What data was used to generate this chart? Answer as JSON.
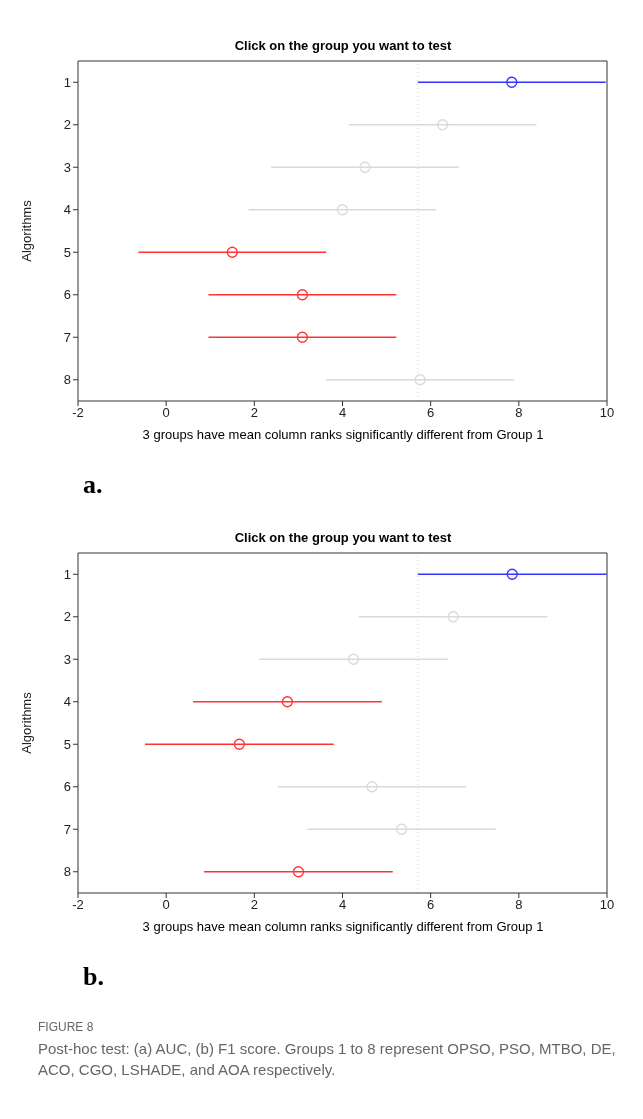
{
  "chart_data": [
    {
      "type": "scatter",
      "orientation": "horizontal",
      "title": "Click on the group you want to test",
      "xlabel": "3 groups have mean column ranks significantly different from Group 1",
      "ylabel": "Algorithms",
      "categories": [
        "1",
        "2",
        "3",
        "4",
        "5",
        "6",
        "7",
        "8"
      ],
      "values": [
        7.84,
        6.27,
        4.51,
        4.0,
        1.5,
        3.09,
        3.09,
        5.76
      ],
      "errors": [
        2.13,
        2.13,
        2.13,
        2.13,
        2.13,
        2.13,
        2.13,
        2.13
      ],
      "colors": [
        "#3333ff",
        "#d9d9d9",
        "#d9d9d9",
        "#d9d9d9",
        "#ff3333",
        "#ff3333",
        "#ff3333",
        "#d9d9d9"
      ],
      "xlim": [
        -2,
        10
      ],
      "xticks": [
        -2,
        0,
        2,
        4,
        6,
        8,
        10
      ],
      "marker": "circle",
      "ref_lines": [
        {
          "axis": "x",
          "value": 5.71,
          "color": "#d9d9d9",
          "line_style": "dotted"
        }
      ],
      "annotations": [
        "a."
      ]
    },
    {
      "type": "scatter",
      "orientation": "horizontal",
      "title": "Click on the group you want to test",
      "xlabel": "3 groups have mean column ranks significantly different from Group 1",
      "ylabel": "Algorithms",
      "categories": [
        "1",
        "2",
        "3",
        "4",
        "5",
        "6",
        "7",
        "8"
      ],
      "values": [
        7.85,
        6.51,
        4.25,
        2.75,
        1.66,
        4.67,
        5.34,
        3.0
      ],
      "errors": [
        2.14,
        2.14,
        2.14,
        2.14,
        2.14,
        2.14,
        2.14,
        2.14
      ],
      "colors": [
        "#3333ff",
        "#d9d9d9",
        "#d9d9d9",
        "#ff3333",
        "#ff3333",
        "#d9d9d9",
        "#d9d9d9",
        "#ff3333"
      ],
      "xlim": [
        -2,
        10
      ],
      "xticks": [
        -2,
        0,
        2,
        4,
        6,
        8,
        10
      ],
      "marker": "circle",
      "ref_lines": [
        {
          "axis": "x",
          "value": 5.71,
          "color": "#d9d9d9",
          "line_style": "dotted"
        }
      ],
      "annotations": [
        "b.",
        "FIGURE 8",
        "Post-hoc test: (a) AUC, (b) F1 score. Groups 1 to 8 represent OPSO, PSO, MTBO, DE, ACO, CGO, LSHADE, and AOA respectively."
      ]
    }
  ]
}
